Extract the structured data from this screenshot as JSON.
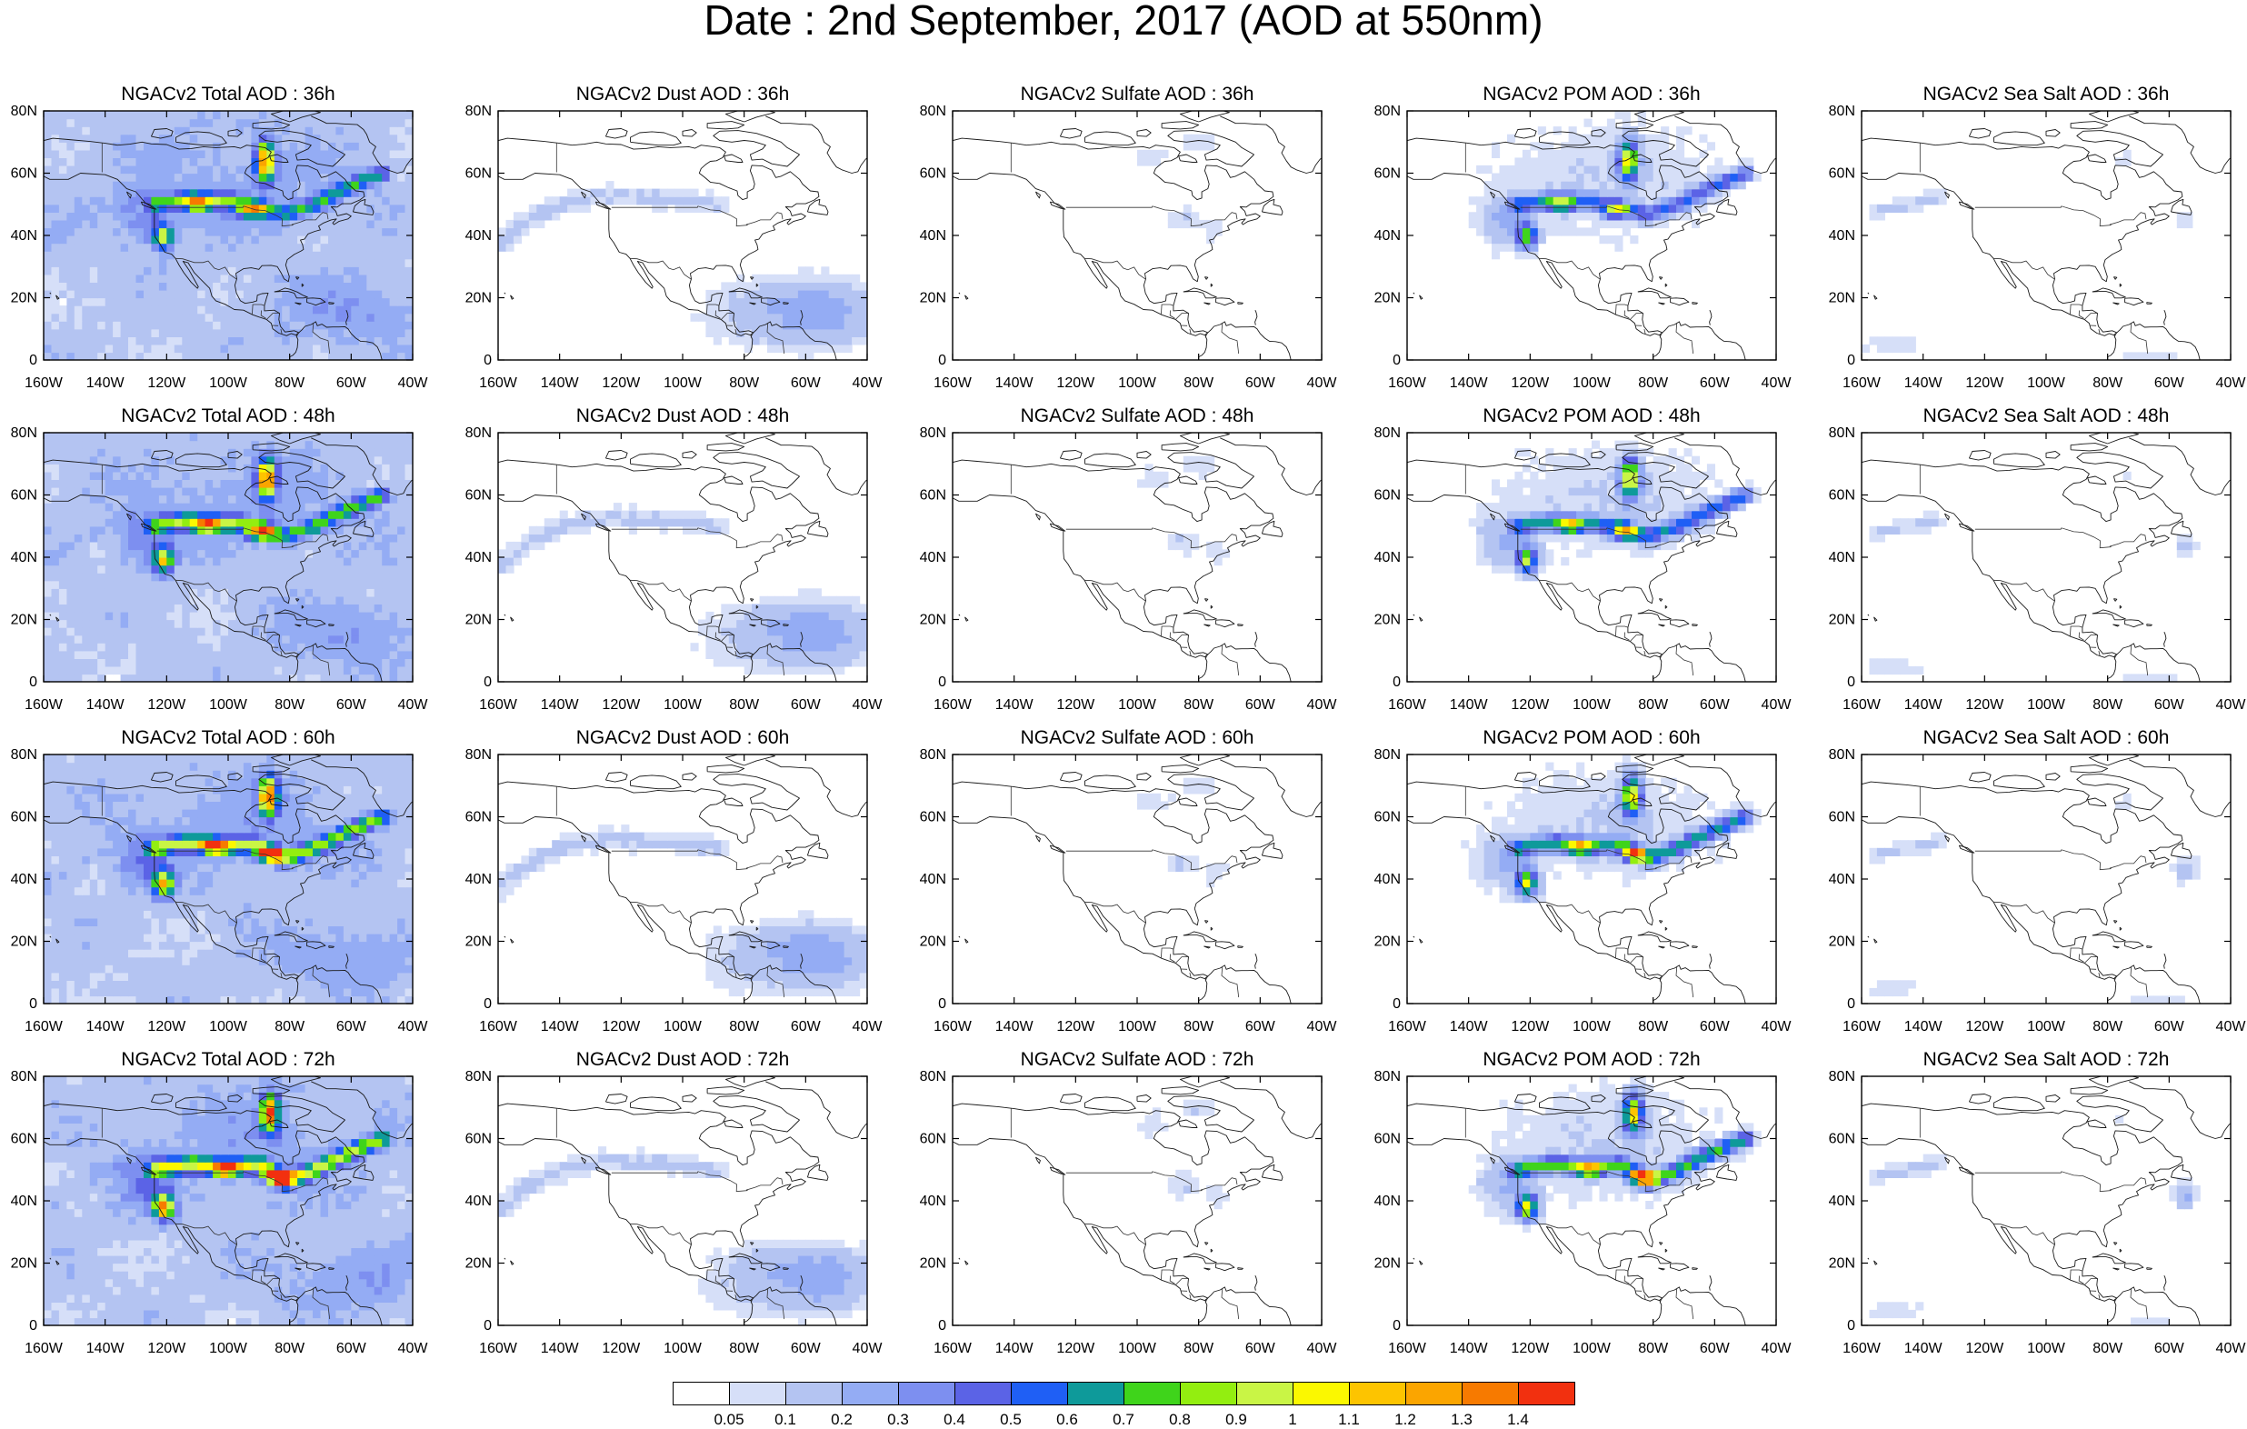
{
  "title": "Date : 2nd September, 2017 (AOD at 550nm)",
  "ylabels": [
    "0",
    "20N",
    "40N",
    "60N",
    "80N"
  ],
  "xlabels": [
    "160W",
    "140W",
    "120W",
    "100W",
    "80W",
    "60W",
    "40W"
  ],
  "panels": [
    [
      "NGACv2 Total AOD : 36h",
      "NGACv2 Dust AOD : 36h",
      "NGACv2 Sulfate AOD : 36h",
      "NGACv2 POM AOD : 36h",
      "NGACv2 Sea Salt AOD : 36h"
    ],
    [
      "NGACv2 Total AOD : 48h",
      "NGACv2 Dust AOD : 48h",
      "NGACv2 Sulfate AOD : 48h",
      "NGACv2 POM AOD : 48h",
      "NGACv2 Sea Salt AOD : 48h"
    ],
    [
      "NGACv2 Total AOD : 60h",
      "NGACv2 Dust AOD : 60h",
      "NGACv2 Sulfate AOD : 60h",
      "NGACv2 POM AOD : 60h",
      "NGACv2 Sea Salt AOD : 60h"
    ],
    [
      "NGACv2 Total AOD : 72h",
      "NGACv2 Dust AOD : 72h",
      "NGACv2 Sulfate AOD : 72h",
      "NGACv2 POM AOD : 72h",
      "NGACv2 Sea Salt  AOD : 72h"
    ]
  ],
  "colorbar": {
    "labels": [
      "0.05",
      "0.1",
      "0.2",
      "0.3",
      "0.4",
      "0.5",
      "0.6",
      "0.7",
      "0.8",
      "0.9",
      "1",
      "1.1",
      "1.2",
      "1.3",
      "1.4"
    ],
    "colors": [
      "#ffffff",
      "#d6dff8",
      "#b4c4f2",
      "#94acf4",
      "#7d8ff0",
      "#5b63e6",
      "#1f5ff5",
      "#0e9a9a",
      "#3fd41b",
      "#93ee10",
      "#c9f545",
      "#fbf800",
      "#fdc400",
      "#fba500",
      "#f77a00",
      "#f2300f"
    ]
  }
}
